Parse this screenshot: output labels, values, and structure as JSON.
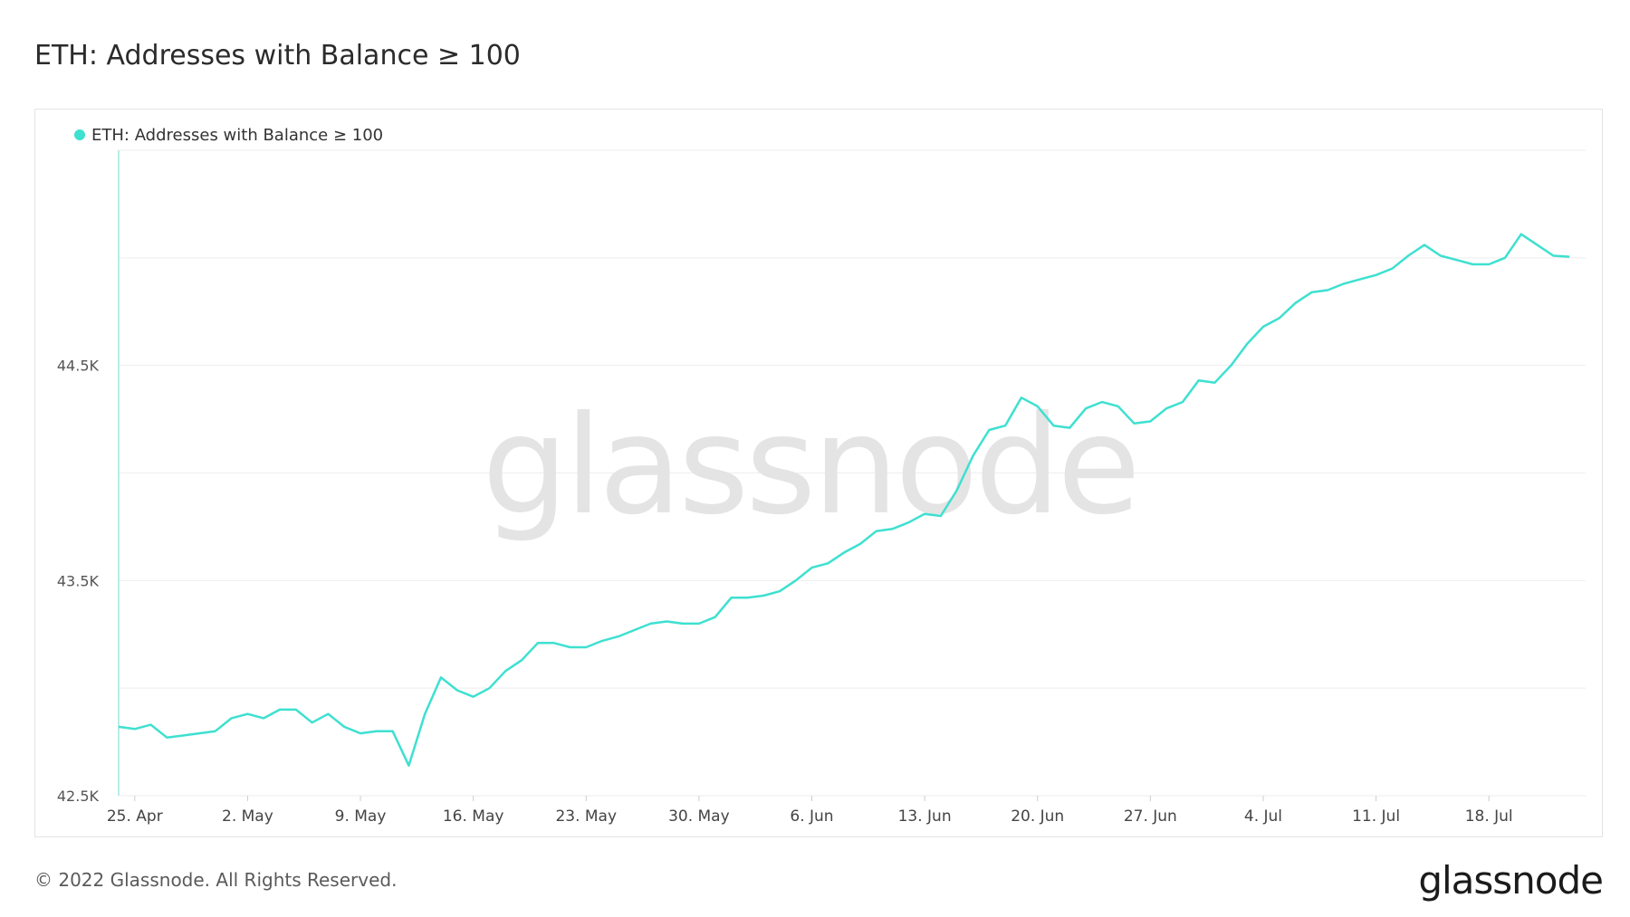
{
  "title": "ETH: Addresses with Balance ≥ 100",
  "footer": {
    "copyright": "© 2022 Glassnode. All Rights Reserved.",
    "logo_text": "glassnode"
  },
  "watermark_text": "glassnode",
  "colors": {
    "series": "#3ee0d0",
    "grid": "#eeeeee",
    "axis": "#9ee8e2"
  },
  "chart_data": {
    "type": "line",
    "title": "ETH: Addresses with Balance ≥ 100",
    "xlabel": "",
    "ylabel": "",
    "legend": {
      "position": "top-left"
    },
    "grid": true,
    "x_range": [
      "2022-04-24",
      "2022-07-24"
    ],
    "ylim": [
      42500,
      45500
    ],
    "y_ticks": [
      {
        "value": 42500,
        "label": "42.5K"
      },
      {
        "value": 43500,
        "label": "43.5K"
      },
      {
        "value": 44500,
        "label": "44.5K"
      }
    ],
    "x_ticks": [
      {
        "date": "2022-04-25",
        "label": "25. Apr"
      },
      {
        "date": "2022-05-02",
        "label": "2. May"
      },
      {
        "date": "2022-05-09",
        "label": "9. May"
      },
      {
        "date": "2022-05-16",
        "label": "16. May"
      },
      {
        "date": "2022-05-23",
        "label": "23. May"
      },
      {
        "date": "2022-05-30",
        "label": "30. May"
      },
      {
        "date": "2022-06-06",
        "label": "6. Jun"
      },
      {
        "date": "2022-06-13",
        "label": "13. Jun"
      },
      {
        "date": "2022-06-20",
        "label": "20. Jun"
      },
      {
        "date": "2022-06-27",
        "label": "27. Jun"
      },
      {
        "date": "2022-07-04",
        "label": "4. Jul"
      },
      {
        "date": "2022-07-11",
        "label": "11. Jul"
      },
      {
        "date": "2022-07-18",
        "label": "18. Jul"
      }
    ],
    "series": [
      {
        "name": "ETH: Addresses with Balance ≥ 100",
        "color": "#3ee0d0",
        "points": [
          [
            "2022-04-24",
            42820
          ],
          [
            "2022-04-25",
            42810
          ],
          [
            "2022-04-26",
            42830
          ],
          [
            "2022-04-27",
            42770
          ],
          [
            "2022-04-28",
            42780
          ],
          [
            "2022-04-29",
            42790
          ],
          [
            "2022-04-30",
            42800
          ],
          [
            "2022-05-01",
            42860
          ],
          [
            "2022-05-02",
            42880
          ],
          [
            "2022-05-03",
            42860
          ],
          [
            "2022-05-04",
            42900
          ],
          [
            "2022-05-05",
            42900
          ],
          [
            "2022-05-06",
            42840
          ],
          [
            "2022-05-07",
            42880
          ],
          [
            "2022-05-08",
            42820
          ],
          [
            "2022-05-09",
            42790
          ],
          [
            "2022-05-10",
            42800
          ],
          [
            "2022-05-11",
            42800
          ],
          [
            "2022-05-12",
            42640
          ],
          [
            "2022-05-13",
            42880
          ],
          [
            "2022-05-14",
            43050
          ],
          [
            "2022-05-15",
            42990
          ],
          [
            "2022-05-16",
            42960
          ],
          [
            "2022-05-17",
            43000
          ],
          [
            "2022-05-18",
            43080
          ],
          [
            "2022-05-19",
            43130
          ],
          [
            "2022-05-20",
            43210
          ],
          [
            "2022-05-21",
            43210
          ],
          [
            "2022-05-22",
            43190
          ],
          [
            "2022-05-23",
            43190
          ],
          [
            "2022-05-24",
            43220
          ],
          [
            "2022-05-25",
            43240
          ],
          [
            "2022-05-26",
            43270
          ],
          [
            "2022-05-27",
            43300
          ],
          [
            "2022-05-28",
            43310
          ],
          [
            "2022-05-29",
            43300
          ],
          [
            "2022-05-30",
            43300
          ],
          [
            "2022-05-31",
            43330
          ],
          [
            "2022-06-01",
            43420
          ],
          [
            "2022-06-02",
            43420
          ],
          [
            "2022-06-03",
            43430
          ],
          [
            "2022-06-04",
            43450
          ],
          [
            "2022-06-05",
            43500
          ],
          [
            "2022-06-06",
            43560
          ],
          [
            "2022-06-07",
            43580
          ],
          [
            "2022-06-08",
            43630
          ],
          [
            "2022-06-09",
            43670
          ],
          [
            "2022-06-10",
            43730
          ],
          [
            "2022-06-11",
            43740
          ],
          [
            "2022-06-12",
            43770
          ],
          [
            "2022-06-13",
            43810
          ],
          [
            "2022-06-14",
            43800
          ],
          [
            "2022-06-15",
            43920
          ],
          [
            "2022-06-16",
            44080
          ],
          [
            "2022-06-17",
            44200
          ],
          [
            "2022-06-18",
            44220
          ],
          [
            "2022-06-19",
            44350
          ],
          [
            "2022-06-20",
            44310
          ],
          [
            "2022-06-21",
            44220
          ],
          [
            "2022-06-22",
            44210
          ],
          [
            "2022-06-23",
            44300
          ],
          [
            "2022-06-24",
            44330
          ],
          [
            "2022-06-25",
            44310
          ],
          [
            "2022-06-26",
            44230
          ],
          [
            "2022-06-27",
            44240
          ],
          [
            "2022-06-28",
            44300
          ],
          [
            "2022-06-29",
            44330
          ],
          [
            "2022-06-30",
            44430
          ],
          [
            "2022-07-01",
            44420
          ],
          [
            "2022-07-02",
            44500
          ],
          [
            "2022-07-03",
            44600
          ],
          [
            "2022-07-04",
            44680
          ],
          [
            "2022-07-05",
            44720
          ],
          [
            "2022-07-06",
            44790
          ],
          [
            "2022-07-07",
            44840
          ],
          [
            "2022-07-08",
            44850
          ],
          [
            "2022-07-09",
            44880
          ],
          [
            "2022-07-10",
            44900
          ],
          [
            "2022-07-11",
            44920
          ],
          [
            "2022-07-12",
            44950
          ],
          [
            "2022-07-13",
            45010
          ],
          [
            "2022-07-14",
            45060
          ],
          [
            "2022-07-15",
            45010
          ],
          [
            "2022-07-16",
            44990
          ],
          [
            "2022-07-17",
            44970
          ],
          [
            "2022-07-18",
            44970
          ],
          [
            "2022-07-19",
            45000
          ],
          [
            "2022-07-20",
            45110
          ],
          [
            "2022-07-21",
            45060
          ],
          [
            "2022-07-22",
            45010
          ],
          [
            "2022-07-23",
            45005
          ]
        ]
      }
    ]
  }
}
